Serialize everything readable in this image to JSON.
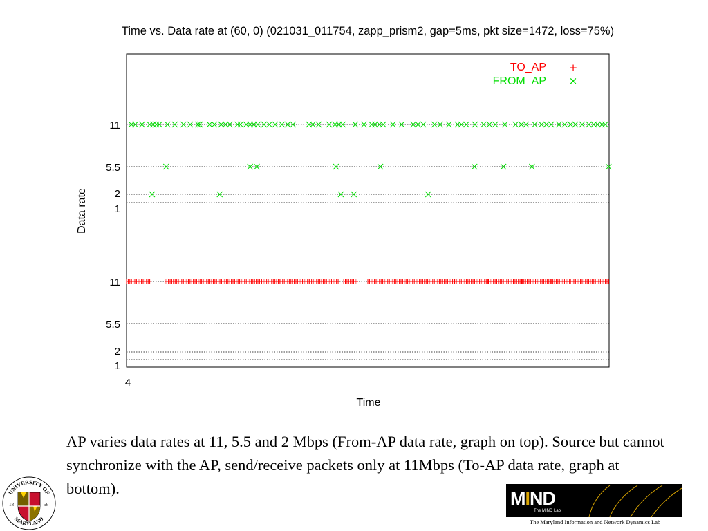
{
  "chart_data": {
    "type": "scatter",
    "title": "Time vs. Data rate at (60, 0) (021031_011754, zapp_prism2, gap=5ms, pkt size=1472, loss=75%)",
    "xlabel": "Time",
    "ylabel": "Data rate",
    "x_tick_labels": [
      "4"
    ],
    "x_range_fraction": [
      0,
      1
    ],
    "panels": [
      {
        "name": "top",
        "y_tick_labels": [
          "11",
          "5.5",
          "2",
          "1"
        ],
        "series": "FROM_AP",
        "grid": true
      },
      {
        "name": "bottom",
        "y_tick_labels": [
          "11",
          "5.5",
          "2",
          "1"
        ],
        "series": "TO_AP",
        "grid": true
      }
    ],
    "legend": {
      "placement": "top-right",
      "entries": [
        {
          "name": "TO_AP",
          "marker": "+",
          "color": "#ff0000"
        },
        {
          "name": "FROM_AP",
          "marker": "×",
          "color": "#00dd00"
        }
      ]
    },
    "series": [
      {
        "name": "FROM_AP",
        "panel": "top",
        "color": "#00dd00",
        "marker": "x",
        "points": [
          {
            "t": 0.01,
            "rate": 11
          },
          {
            "t": 0.018,
            "rate": 11
          },
          {
            "t": 0.032,
            "rate": 11
          },
          {
            "t": 0.048,
            "rate": 11
          },
          {
            "t": 0.055,
            "rate": 11
          },
          {
            "t": 0.062,
            "rate": 11
          },
          {
            "t": 0.068,
            "rate": 11
          },
          {
            "t": 0.085,
            "rate": 11
          },
          {
            "t": 0.1,
            "rate": 11
          },
          {
            "t": 0.118,
            "rate": 11
          },
          {
            "t": 0.132,
            "rate": 11
          },
          {
            "t": 0.148,
            "rate": 11
          },
          {
            "t": 0.152,
            "rate": 11
          },
          {
            "t": 0.172,
            "rate": 11
          },
          {
            "t": 0.182,
            "rate": 11
          },
          {
            "t": 0.196,
            "rate": 11
          },
          {
            "t": 0.205,
            "rate": 11
          },
          {
            "t": 0.214,
            "rate": 11
          },
          {
            "t": 0.23,
            "rate": 11
          },
          {
            "t": 0.236,
            "rate": 11
          },
          {
            "t": 0.248,
            "rate": 11
          },
          {
            "t": 0.256,
            "rate": 11
          },
          {
            "t": 0.264,
            "rate": 11
          },
          {
            "t": 0.272,
            "rate": 11
          },
          {
            "t": 0.285,
            "rate": 11
          },
          {
            "t": 0.296,
            "rate": 11
          },
          {
            "t": 0.308,
            "rate": 11
          },
          {
            "t": 0.322,
            "rate": 11
          },
          {
            "t": 0.334,
            "rate": 11
          },
          {
            "t": 0.345,
            "rate": 11
          },
          {
            "t": 0.378,
            "rate": 11
          },
          {
            "t": 0.386,
            "rate": 11
          },
          {
            "t": 0.398,
            "rate": 11
          },
          {
            "t": 0.42,
            "rate": 11
          },
          {
            "t": 0.432,
            "rate": 11
          },
          {
            "t": 0.44,
            "rate": 11
          },
          {
            "t": 0.448,
            "rate": 11
          },
          {
            "t": 0.474,
            "rate": 11
          },
          {
            "t": 0.492,
            "rate": 11
          },
          {
            "t": 0.508,
            "rate": 11
          },
          {
            "t": 0.515,
            "rate": 11
          },
          {
            "t": 0.524,
            "rate": 11
          },
          {
            "t": 0.532,
            "rate": 11
          },
          {
            "t": 0.552,
            "rate": 11
          },
          {
            "t": 0.57,
            "rate": 11
          },
          {
            "t": 0.594,
            "rate": 11
          },
          {
            "t": 0.604,
            "rate": 11
          },
          {
            "t": 0.615,
            "rate": 11
          },
          {
            "t": 0.638,
            "rate": 11
          },
          {
            "t": 0.65,
            "rate": 11
          },
          {
            "t": 0.668,
            "rate": 11
          },
          {
            "t": 0.686,
            "rate": 11
          },
          {
            "t": 0.694,
            "rate": 11
          },
          {
            "t": 0.704,
            "rate": 11
          },
          {
            "t": 0.722,
            "rate": 11
          },
          {
            "t": 0.74,
            "rate": 11
          },
          {
            "t": 0.752,
            "rate": 11
          },
          {
            "t": 0.764,
            "rate": 11
          },
          {
            "t": 0.784,
            "rate": 11
          },
          {
            "t": 0.806,
            "rate": 11
          },
          {
            "t": 0.818,
            "rate": 11
          },
          {
            "t": 0.828,
            "rate": 11
          },
          {
            "t": 0.846,
            "rate": 11
          },
          {
            "t": 0.86,
            "rate": 11
          },
          {
            "t": 0.87,
            "rate": 11
          },
          {
            "t": 0.88,
            "rate": 11
          },
          {
            "t": 0.896,
            "rate": 11
          },
          {
            "t": 0.908,
            "rate": 11
          },
          {
            "t": 0.92,
            "rate": 11
          },
          {
            "t": 0.93,
            "rate": 11
          },
          {
            "t": 0.944,
            "rate": 11
          },
          {
            "t": 0.958,
            "rate": 11
          },
          {
            "t": 0.968,
            "rate": 11
          },
          {
            "t": 0.976,
            "rate": 11
          },
          {
            "t": 0.985,
            "rate": 11
          },
          {
            "t": 0.992,
            "rate": 11
          },
          {
            "t": 0.082,
            "rate": 5.5
          },
          {
            "t": 0.256,
            "rate": 5.5
          },
          {
            "t": 0.27,
            "rate": 5.5
          },
          {
            "t": 0.434,
            "rate": 5.5
          },
          {
            "t": 0.526,
            "rate": 5.5
          },
          {
            "t": 0.721,
            "rate": 5.5
          },
          {
            "t": 0.781,
            "rate": 5.5
          },
          {
            "t": 0.84,
            "rate": 5.5
          },
          {
            "t": 0.999,
            "rate": 5.5
          },
          {
            "t": 0.053,
            "rate": 2
          },
          {
            "t": 0.193,
            "rate": 2
          },
          {
            "t": 0.444,
            "rate": 2
          },
          {
            "t": 0.471,
            "rate": 2
          },
          {
            "t": 0.625,
            "rate": 2
          }
        ]
      },
      {
        "name": "TO_AP",
        "panel": "bottom",
        "color": "#ff0000",
        "marker": "+",
        "rate": 11,
        "segments": [
          [
            0.0,
            0.05
          ],
          [
            0.08,
            0.2
          ],
          [
            0.2,
            0.28
          ],
          [
            0.28,
            0.32
          ],
          [
            0.32,
            0.38
          ],
          [
            0.38,
            0.44
          ],
          [
            0.45,
            0.48
          ],
          [
            0.5,
            0.6
          ],
          [
            0.6,
            0.68
          ],
          [
            0.68,
            0.75
          ],
          [
            0.75,
            0.82
          ],
          [
            0.82,
            0.88
          ],
          [
            0.88,
            0.92
          ],
          [
            0.92,
            1.0
          ]
        ]
      }
    ]
  },
  "caption": {
    "text": "AP varies data rates at 11, 5.5 and 2 Mbps (From-AP data rate, graph on top). Source but cannot synchronize with the AP, send/receive packets only at 11Mbps (To-AP data rate, graph at bottom)."
  },
  "logos": {
    "umd": {
      "top_text": "UNIVERSITY OF",
      "bottom_text": "MARYLAND",
      "year_left": "18",
      "year_right": "56"
    },
    "mind": {
      "word_m": "M",
      "word_i": "I",
      "word_nd": "ND",
      "subtitle": "The MIND Lab",
      "footer": "The Maryland Information and Network Dynamics Lab"
    }
  },
  "colors": {
    "to_ap": "#ff0000",
    "from_ap": "#00dd00",
    "grid": "#000000",
    "mind_banner": "#000000",
    "mind_accent": "#d9a400"
  }
}
